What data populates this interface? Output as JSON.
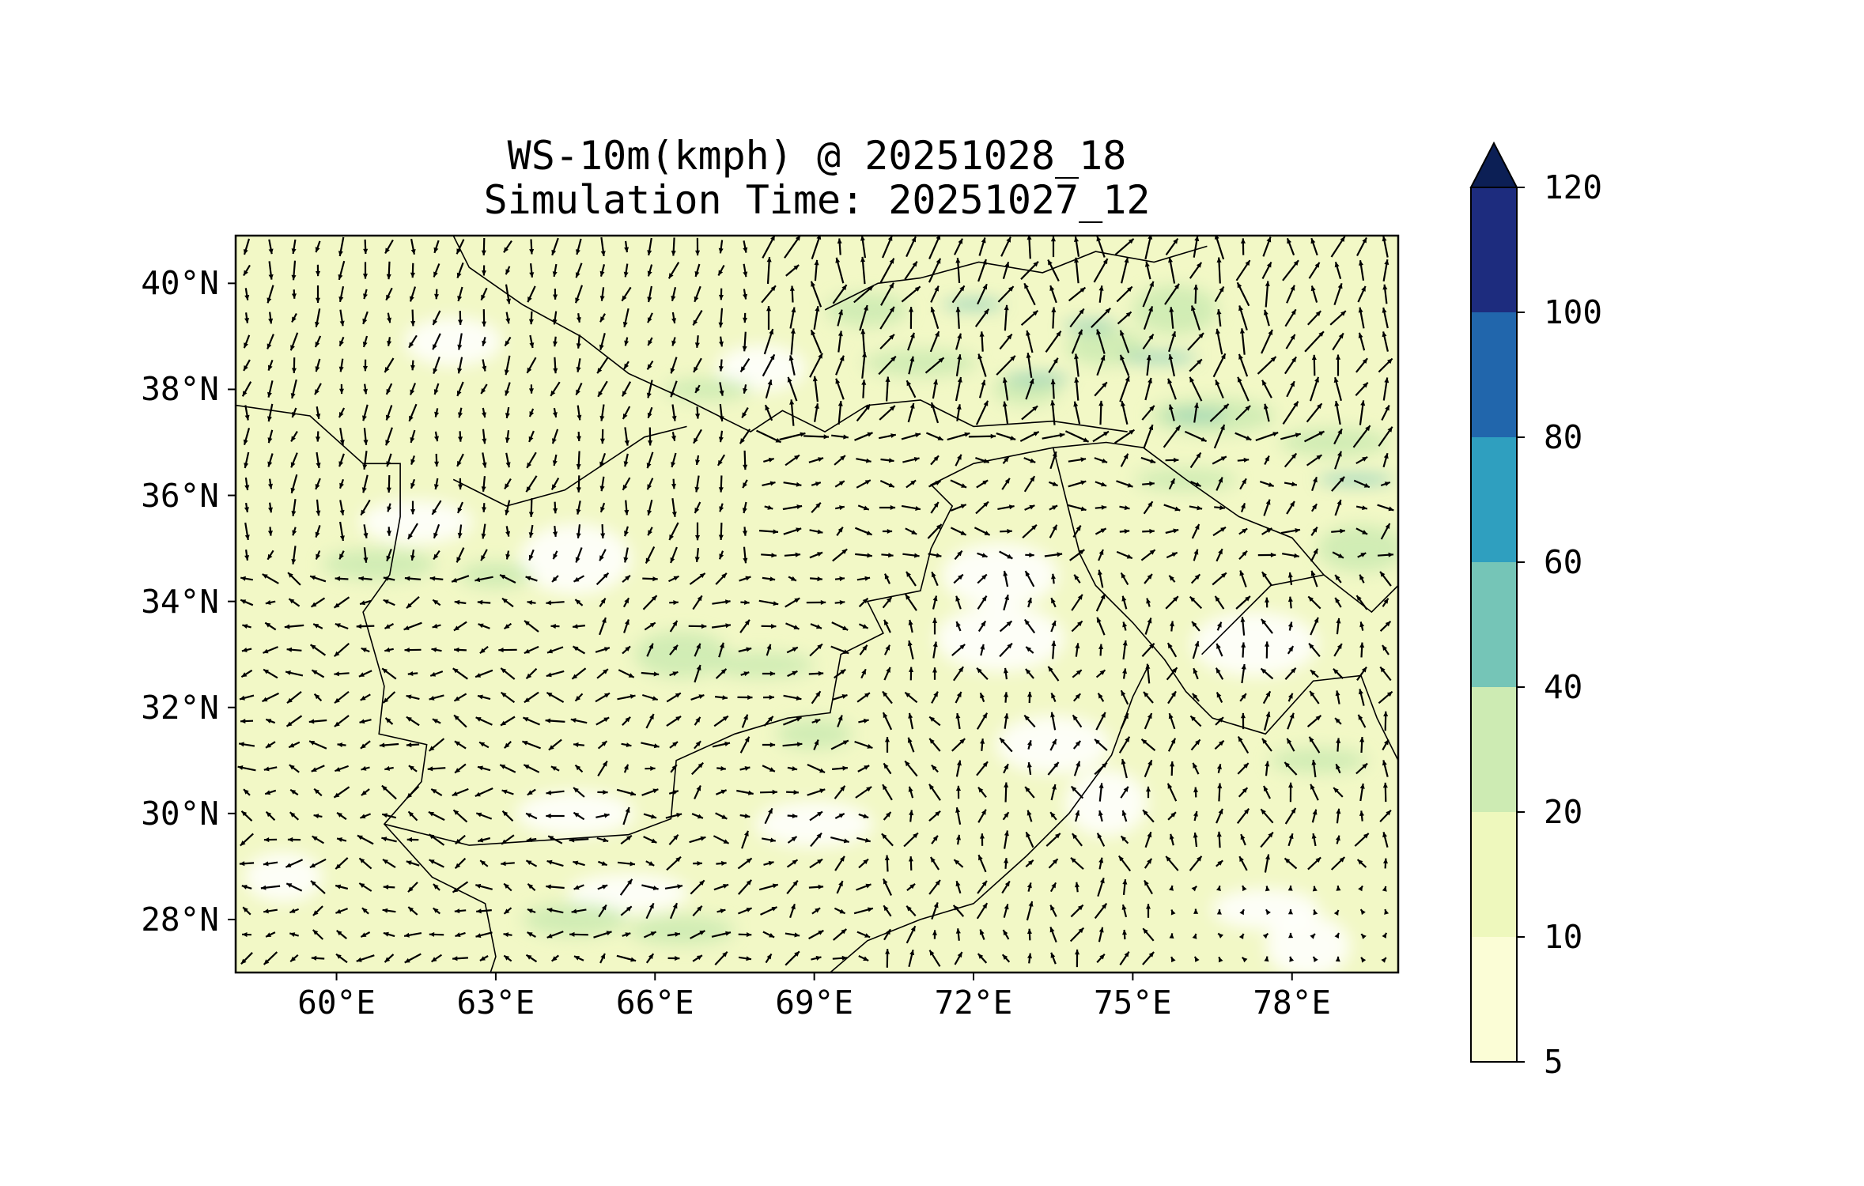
{
  "title": {
    "line1": "WS-10m(kmph) @ 20251028_18",
    "line2": "Simulation Time: 20251027_12"
  },
  "map": {
    "lon_range": [
      58.1,
      80.0
    ],
    "lat_range": [
      27.0,
      40.9
    ],
    "lat_ticks": [
      {
        "value": 40,
        "label": "40°N"
      },
      {
        "value": 38,
        "label": "38°N"
      },
      {
        "value": 36,
        "label": "36°N"
      },
      {
        "value": 34,
        "label": "34°N"
      },
      {
        "value": 32,
        "label": "32°N"
      },
      {
        "value": 30,
        "label": "30°N"
      },
      {
        "value": 28,
        "label": "28°N"
      }
    ],
    "lon_ticks": [
      {
        "value": 60,
        "label": "60°E"
      },
      {
        "value": 63,
        "label": "63°E"
      },
      {
        "value": 66,
        "label": "66°E"
      },
      {
        "value": 69,
        "label": "69°E"
      },
      {
        "value": 72,
        "label": "72°E"
      },
      {
        "value": 75,
        "label": "75°E"
      },
      {
        "value": 78,
        "label": "78°E"
      }
    ],
    "fill_color": "#f2f8c6",
    "vector_field": "wind arrows at 10 m"
  },
  "colorbar": {
    "levels": [
      {
        "label": "5"
      },
      {
        "label": "10"
      },
      {
        "label": "20"
      },
      {
        "label": "40"
      },
      {
        "label": "60"
      },
      {
        "label": "80"
      },
      {
        "label": "100"
      },
      {
        "label": "120"
      }
    ],
    "colors": [
      "#fbfdd6",
      "#eef8bd",
      "#cdebb3",
      "#75c5b7",
      "#2f9fbf",
      "#2166ac",
      "#1d2c7e"
    ],
    "extend_color": "#0c1f55",
    "extend": "max"
  }
}
